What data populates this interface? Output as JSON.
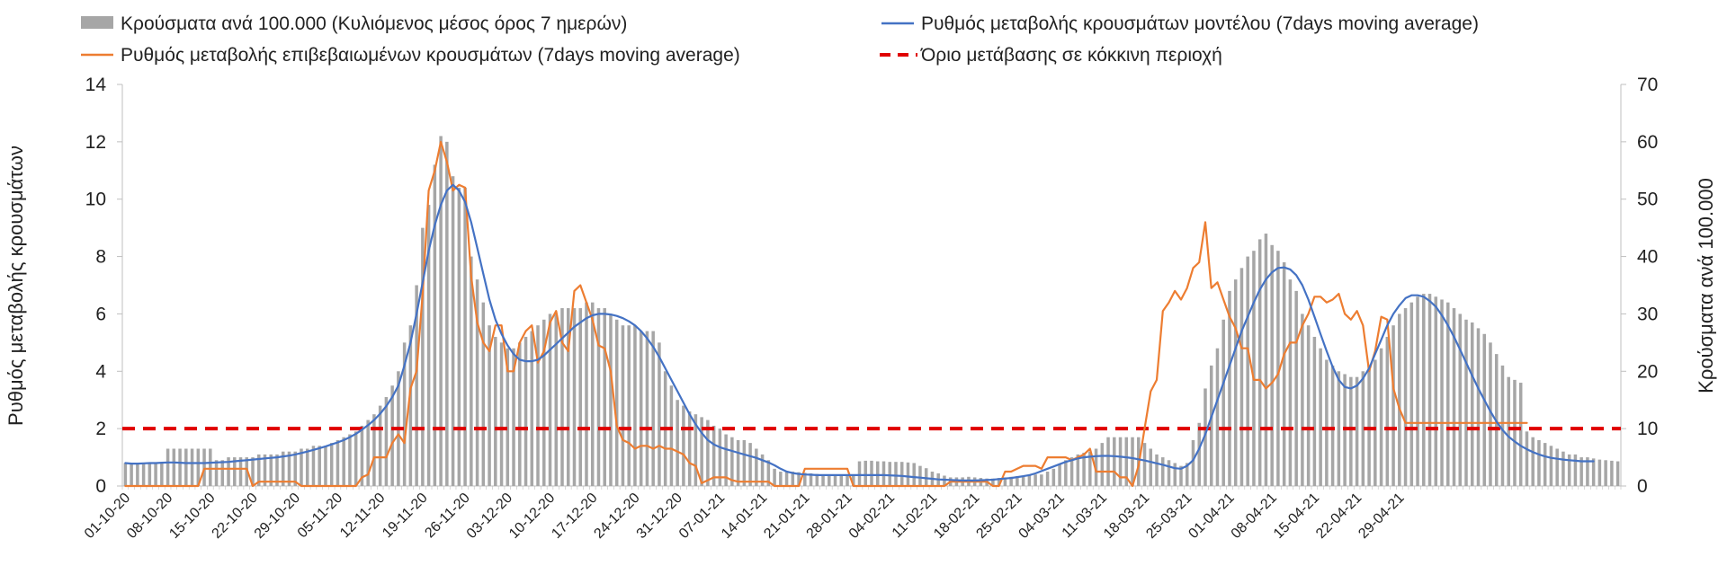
{
  "chart_data": {
    "type": "bar+line",
    "title": "",
    "left_axis": {
      "label": "Ρυθμός μεταβολής κρουσμάτων",
      "range": [
        0,
        14
      ],
      "ticks": [
        0,
        2,
        4,
        6,
        8,
        10,
        12,
        14
      ]
    },
    "right_axis": {
      "label": "Κρούσματα ανά 100.000",
      "range": [
        0,
        70
      ],
      "ticks": [
        0,
        10,
        20,
        30,
        40,
        50,
        60,
        70
      ]
    },
    "start_date": "2020-10-01",
    "x_tick_labels": [
      "01-10-20",
      "08-10-20",
      "15-10-20",
      "22-10-20",
      "29-10-20",
      "05-11-20",
      "12-11-20",
      "19-11-20",
      "26-11-20",
      "03-12-20",
      "10-12-20",
      "17-12-20",
      "24-12-20",
      "31-12-20",
      "07-01-21",
      "14-01-21",
      "21-01-21",
      "28-01-21",
      "04-02-21",
      "11-02-21",
      "18-02-21",
      "25-02-21",
      "04-03-21",
      "11-03-21",
      "18-03-21",
      "25-03-21",
      "01-04-21",
      "08-04-21",
      "15-04-21",
      "22-04-21",
      "29-04-21"
    ],
    "threshold": {
      "value": 2,
      "color": "#e00000"
    },
    "legend": [
      {
        "label": "Κρούσματα ανά 100.000 (Κυλιόμενος μέσος όρος 7 ημερών)",
        "kind": "bar",
        "color": "#a6a6a6"
      },
      {
        "label": "Ρυθμός μεταβολής κρουσμάτων μοντέλου (7days moving average)",
        "kind": "line",
        "color": "#4472c4"
      },
      {
        "label": "Ρυθμός μεταβολής επιβεβαιωμένων κρουσμάτων (7days moving average)",
        "kind": "line",
        "color": "#ed7d31"
      },
      {
        "label": "Όριο μετάβασης σε κόκκινη περιοχή",
        "kind": "dashed",
        "color": "#e00000"
      }
    ],
    "series": [
      {
        "name": "Κρούσματα ανά 100.000 (Κυλιόμενος μέσος όρος 7 ημερών)",
        "axis": "right",
        "type": "bar",
        "color": "#a6a6a6",
        "values": [
          4,
          4,
          4,
          4,
          4,
          4,
          4,
          6.5,
          6.5,
          6.5,
          6.5,
          6.5,
          6.5,
          6.5,
          6.5,
          4.5,
          4.5,
          5,
          5,
          5,
          5,
          5,
          5.5,
          5.5,
          5.5,
          5.5,
          6,
          6,
          6,
          6.5,
          6.5,
          7,
          7,
          7,
          7.5,
          8,
          8.5,
          9,
          9.5,
          10.5,
          11.5,
          12.5,
          14,
          15.5,
          17.5,
          20,
          25,
          28,
          35,
          45,
          49,
          56,
          61,
          60,
          54,
          52,
          52,
          40,
          36,
          32,
          28,
          26,
          25,
          24,
          24,
          25,
          26,
          27,
          28,
          29,
          30,
          30,
          31,
          31,
          31,
          31,
          32,
          32,
          31,
          31,
          30,
          29,
          28,
          28,
          28,
          27,
          27,
          27,
          25,
          20,
          17.5,
          15,
          14,
          13,
          12.5,
          12,
          11.5,
          10.5,
          10,
          9,
          8.5,
          8,
          8,
          7.5,
          6.5,
          5.5,
          4.5,
          3,
          2.5,
          2.5,
          2.5,
          2.4,
          2.3,
          2.2,
          2.1,
          2,
          2,
          2,
          2,
          2,
          2,
          4.3,
          4.4,
          4.4,
          4.3,
          4.3,
          4.2,
          4.2,
          4.2,
          4.1,
          4,
          3.5,
          3.1,
          2.5,
          2.2,
          1.8,
          1.5,
          1.5,
          1.5,
          1.6,
          1.5,
          1.4,
          1.3,
          1.3,
          1.4,
          1.5,
          1.6,
          1.7,
          1.8,
          1.9,
          2,
          2,
          2.5,
          3,
          3.8,
          4.5,
          5,
          5.5,
          5.8,
          6,
          6.5,
          7.5,
          8.5,
          8.5,
          8.5,
          8.5,
          8.5,
          8.5,
          7.5,
          6.5,
          5.5,
          5,
          4.5,
          4,
          3.5,
          4,
          8,
          11,
          17,
          21,
          24,
          29,
          34,
          36,
          38,
          40,
          41,
          43,
          44,
          42,
          41,
          39,
          36,
          34,
          30,
          28,
          26,
          24,
          22,
          21,
          20,
          19.5,
          19,
          19,
          20,
          21,
          22,
          24,
          26,
          28,
          30,
          31,
          32,
          33,
          33.5,
          33.5,
          33,
          32.5,
          32,
          31,
          30,
          29,
          28.5,
          27.5,
          26.5,
          25,
          23,
          21,
          19,
          18.5,
          18,
          9.5,
          8.5,
          8,
          7.5,
          7,
          6.5,
          6,
          5.5,
          5.5,
          5,
          5,
          4.8,
          4.6,
          4.5,
          4.4,
          4.3
        ]
      },
      {
        "name": "Ρυθμός μεταβολής κρουσμάτων μοντέλου (7days moving average)",
        "axis": "left",
        "type": "line",
        "color": "#4472c4",
        "values": [
          0.8,
          0.78,
          0.78,
          0.79,
          0.8,
          0.8,
          0.81,
          0.82,
          0.82,
          0.81,
          0.8,
          0.8,
          0.8,
          0.8,
          0.81,
          0.82,
          0.83,
          0.84,
          0.86,
          0.88,
          0.9,
          0.92,
          0.94,
          0.96,
          0.98,
          1,
          1.03,
          1.06,
          1.1,
          1.15,
          1.2,
          1.26,
          1.32,
          1.38,
          1.45,
          1.52,
          1.6,
          1.7,
          1.82,
          1.96,
          2.12,
          2.3,
          2.52,
          2.78,
          3.1,
          3.5,
          4.2,
          5,
          6,
          7.1,
          8.2,
          9.1,
          9.8,
          10.3,
          10.5,
          10.3,
          9.9,
          9.2,
          8.3,
          7.4,
          6.5,
          5.8,
          5.3,
          4.9,
          4.6,
          4.4,
          4.35,
          4.35,
          4.4,
          4.55,
          4.75,
          4.95,
          5.15,
          5.35,
          5.55,
          5.7,
          5.85,
          5.95,
          6,
          6,
          5.98,
          5.93,
          5.85,
          5.74,
          5.6,
          5.4,
          5.15,
          4.85,
          4.5,
          4.1,
          3.7,
          3.3,
          2.9,
          2.5,
          2.15,
          1.85,
          1.6,
          1.45,
          1.35,
          1.28,
          1.22,
          1.16,
          1.1,
          1.04,
          0.98,
          0.9,
          0.82,
          0.72,
          0.6,
          0.5,
          0.45,
          0.42,
          0.4,
          0.39,
          0.38,
          0.38,
          0.38,
          0.38,
          0.38,
          0.38,
          0.38,
          0.38,
          0.38,
          0.38,
          0.38,
          0.38,
          0.37,
          0.36,
          0.35,
          0.33,
          0.31,
          0.29,
          0.27,
          0.25,
          0.23,
          0.22,
          0.21,
          0.2,
          0.19,
          0.19,
          0.19,
          0.2,
          0.21,
          0.22,
          0.24,
          0.26,
          0.28,
          0.31,
          0.34,
          0.38,
          0.44,
          0.52,
          0.6,
          0.68,
          0.76,
          0.84,
          0.9,
          0.96,
          1,
          1.02,
          1.04,
          1.05,
          1.05,
          1.04,
          1.02,
          1,
          0.97,
          0.93,
          0.89,
          0.84,
          0.79,
          0.74,
          0.68,
          0.62,
          0.6,
          0.7,
          0.9,
          1.3,
          1.8,
          2.4,
          3,
          3.6,
          4.2,
          4.8,
          5.4,
          5.9,
          6.4,
          6.85,
          7.2,
          7.45,
          7.6,
          7.62,
          7.55,
          7.35,
          7,
          6.5,
          5.9,
          5.3,
          4.7,
          4.15,
          3.7,
          3.45,
          3.4,
          3.5,
          3.75,
          4.1,
          4.6,
          5.1,
          5.6,
          6,
          6.3,
          6.55,
          6.65,
          6.65,
          6.6,
          6.45,
          6.25,
          5.95,
          5.6,
          5.2,
          4.75,
          4.3,
          3.85,
          3.4,
          3,
          2.6,
          2.25,
          1.95,
          1.72,
          1.55,
          1.4,
          1.28,
          1.18,
          1.1,
          1.03,
          0.98,
          0.95,
          0.92,
          0.9,
          0.88,
          0.86,
          0.86,
          0.86
        ]
      },
      {
        "name": "Ρυθμός μεταβολής επιβεβαιωμένων κρουσμάτων (7days moving average)",
        "axis": "left",
        "type": "line",
        "color": "#ed7d31",
        "values": [
          0,
          0,
          0,
          0,
          0,
          0,
          0,
          0,
          0,
          0,
          0,
          0,
          0,
          0.6,
          0.6,
          0.6,
          0.6,
          0.6,
          0.6,
          0.6,
          0.6,
          0,
          0.15,
          0.15,
          0.15,
          0.15,
          0.15,
          0.15,
          0.15,
          0,
          0,
          0,
          0,
          0,
          0,
          0,
          0,
          0,
          0,
          0.3,
          0.4,
          1,
          1,
          1,
          1.5,
          1.8,
          1.5,
          3.4,
          4,
          6.7,
          10.3,
          11,
          12,
          11.3,
          10.3,
          10.5,
          10.4,
          7.3,
          5.7,
          5,
          4.7,
          5.6,
          5.6,
          4,
          4,
          5,
          5.4,
          5.6,
          4.3,
          4.7,
          5.7,
          6.1,
          5,
          4.7,
          6.8,
          7,
          6.4,
          5.8,
          4.9,
          4.8,
          4,
          2.1,
          1.6,
          1.5,
          1.3,
          1.4,
          1.4,
          1.3,
          1.4,
          1.3,
          1.3,
          1.2,
          1.1,
          0.8,
          0.7,
          0.1,
          0.2,
          0.3,
          0.3,
          0.3,
          0.2,
          0.15,
          0.15,
          0.15,
          0.15,
          0.15,
          0.15,
          0,
          0,
          0,
          0,
          0,
          0.6,
          0.6,
          0.6,
          0.6,
          0.6,
          0.6,
          0.6,
          0.6,
          0,
          0,
          0,
          0,
          0,
          0,
          0,
          0,
          0,
          0,
          0,
          0,
          0,
          0,
          0,
          0,
          0.15,
          0.15,
          0.15,
          0.15,
          0.15,
          0.15,
          0.15,
          0,
          0,
          0.5,
          0.5,
          0.6,
          0.7,
          0.7,
          0.7,
          0.6,
          1,
          1,
          1,
          1,
          0.9,
          1,
          1.1,
          1.3,
          0.5,
          0.5,
          0.5,
          0.5,
          0.3,
          0.3,
          0,
          0.7,
          2,
          3.3,
          3.7,
          6.1,
          6.4,
          6.8,
          6.5,
          6.9,
          7.6,
          7.8,
          9.2,
          6.9,
          7.1,
          6.5,
          5.9,
          5.5,
          4.8,
          4.8,
          3.7,
          3.7,
          3.4,
          3.6,
          3.9,
          4.6,
          5,
          5,
          5.6,
          6,
          6.6,
          6.6,
          6.4,
          6.5,
          6.7,
          6,
          5.8,
          6.1,
          5.6,
          4,
          4.7,
          5.9,
          5.8,
          3.4,
          2.7,
          2.2,
          2.2,
          2.2,
          2.2,
          2.2,
          2.2,
          2.2,
          2.2,
          2.2,
          2.2,
          2.2,
          2.2,
          2.2,
          2.2,
          2.2,
          2.2,
          2.2,
          2.2,
          2.2,
          2.2,
          2.2
        ]
      }
    ]
  }
}
